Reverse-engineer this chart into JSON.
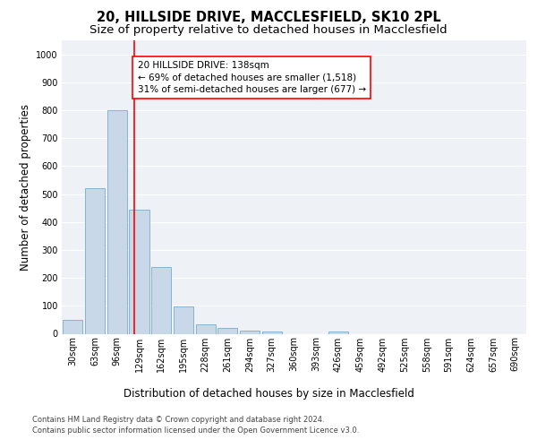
{
  "title_line1": "20, HILLSIDE DRIVE, MACCLESFIELD, SK10 2PL",
  "title_line2": "Size of property relative to detached houses in Macclesfield",
  "xlabel": "Distribution of detached houses by size in Macclesfield",
  "ylabel": "Number of detached properties",
  "footer_line1": "Contains HM Land Registry data © Crown copyright and database right 2024.",
  "footer_line2": "Contains public sector information licensed under the Open Government Licence v3.0.",
  "bin_labels": [
    "30sqm",
    "63sqm",
    "96sqm",
    "129sqm",
    "162sqm",
    "195sqm",
    "228sqm",
    "261sqm",
    "294sqm",
    "327sqm",
    "360sqm",
    "393sqm",
    "426sqm",
    "459sqm",
    "492sqm",
    "525sqm",
    "558sqm",
    "591sqm",
    "624sqm",
    "657sqm",
    "690sqm"
  ],
  "bar_values": [
    50,
    520,
    800,
    445,
    240,
    97,
    35,
    20,
    12,
    8,
    0,
    0,
    8,
    0,
    0,
    0,
    0,
    0,
    0,
    0,
    0
  ],
  "bar_color": "#c8d8e8",
  "bar_edge_color": "#7aaac8",
  "property_line_color": "red",
  "annotation_text": "20 HILLSIDE DRIVE: 138sqm\n← 69% of detached houses are smaller (1,518)\n31% of semi-detached houses are larger (677) →",
  "annotation_box_color": "white",
  "annotation_box_edge": "red",
  "ylim": [
    0,
    1050
  ],
  "yticks": [
    0,
    100,
    200,
    300,
    400,
    500,
    600,
    700,
    800,
    900,
    1000
  ],
  "background_color": "#eef2f7",
  "grid_color": "white",
  "title_fontsize": 10.5,
  "subtitle_fontsize": 9.5,
  "axis_label_fontsize": 8.5,
  "tick_fontsize": 7,
  "annotation_fontsize": 7.5,
  "footer_fontsize": 6.0
}
